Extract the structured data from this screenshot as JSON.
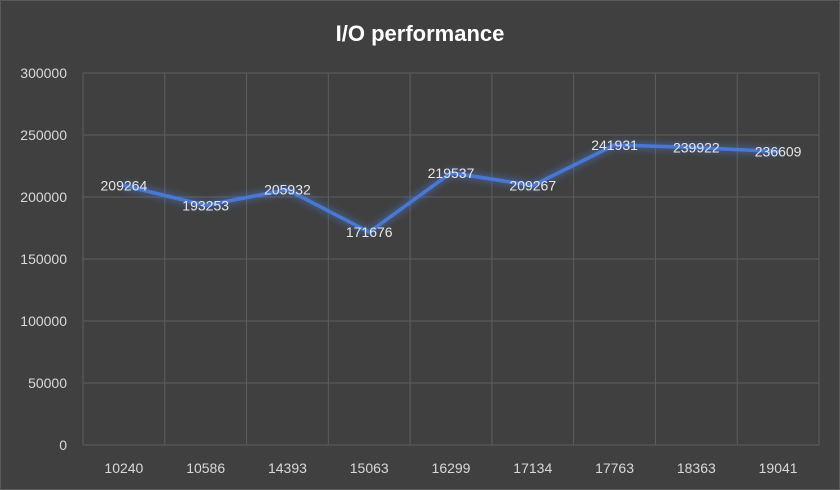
{
  "chart_data": {
    "type": "line",
    "title": "I/O performance",
    "categories": [
      "10240",
      "10586",
      "14393",
      "15063",
      "16299",
      "17134",
      "17763",
      "18363",
      "19041"
    ],
    "series": [
      {
        "values": [
          209264,
          193253,
          205932,
          171676,
          219537,
          209267,
          241931,
          239922,
          236609
        ]
      }
    ],
    "y_ticks": [
      "0",
      "50000",
      "100000",
      "150000",
      "200000",
      "250000",
      "300000"
    ],
    "ylim": [
      0,
      300000
    ],
    "grid": true,
    "data_labels": true,
    "colors": {
      "background": "#404040",
      "line": "#4a78d4",
      "glow": "#3b6fe0",
      "grid": "#5e5e5e",
      "text": "#d9d9d9"
    }
  }
}
